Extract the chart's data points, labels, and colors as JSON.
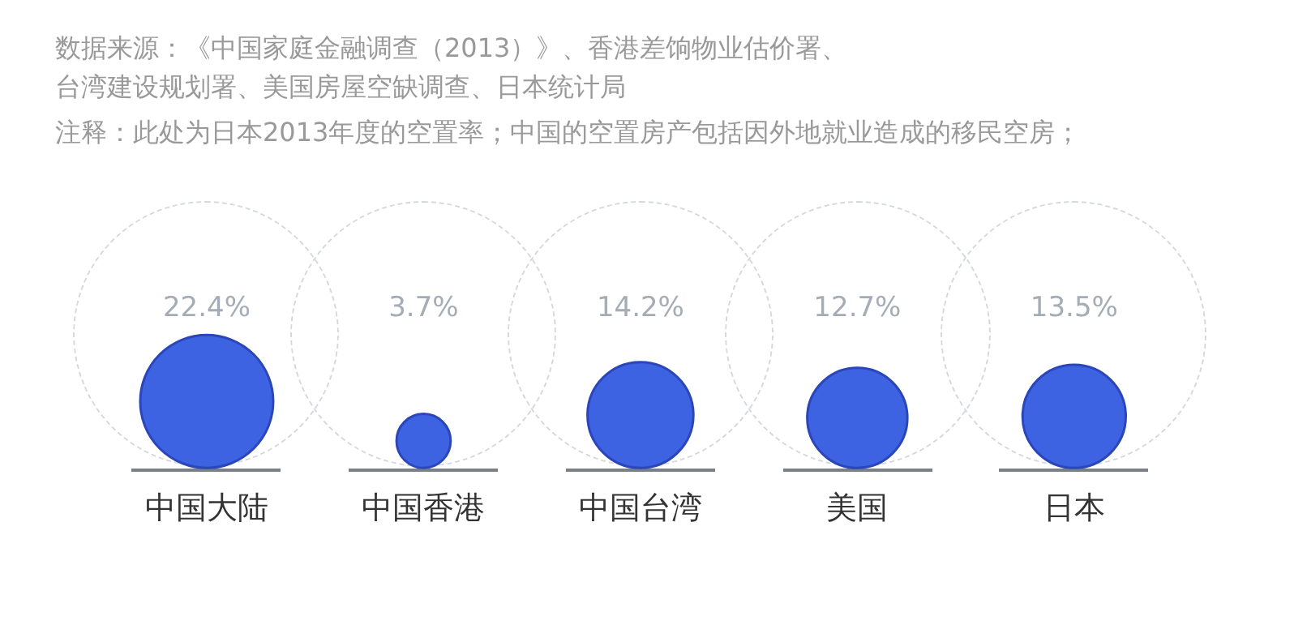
{
  "chart_data": {
    "type": "other",
    "annotations": [
      "数据来源：《中国家庭金融调查（2013）》、香港差饷物业估价署、台湾建设规划署、美国房屋空缺调查、日本统计局",
      "注释：此处为日本2013年度的空置率；中国的空置房产包括因外地就业造成的移民空房；"
    ],
    "categories": [
      "中国大陆",
      "中国香港",
      "中国台湾",
      "美国",
      "日本"
    ],
    "values": [
      22.4,
      3.7,
      14.2,
      12.7,
      13.5
    ],
    "value_labels": [
      "22.4%",
      "3.7%",
      "14.2%",
      "12.7%",
      "13.5%"
    ],
    "color": "#3d63e3"
  }
}
